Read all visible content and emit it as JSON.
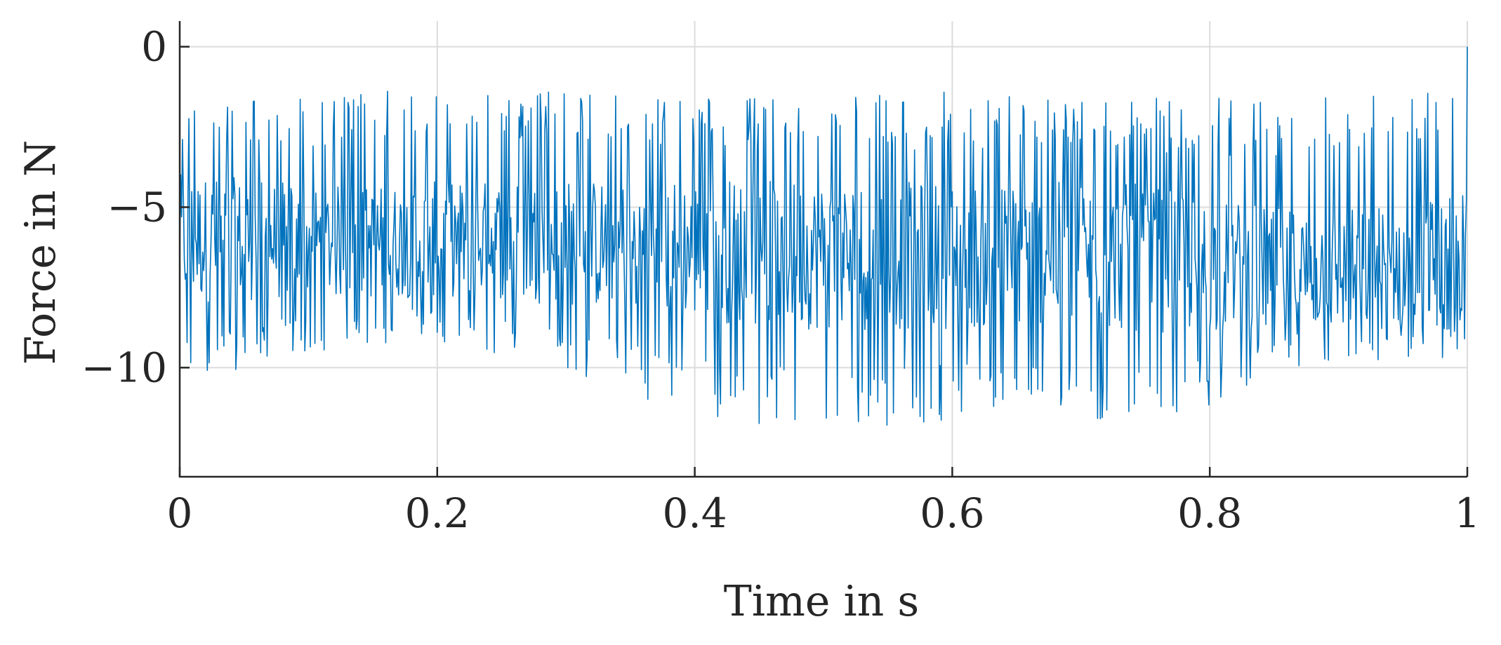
{
  "chart_data": {
    "type": "line",
    "title": "",
    "xlabel": "Time in s",
    "ylabel": "Force in N",
    "xlim": [
      0,
      1
    ],
    "ylim": [
      -13.4,
      0.8
    ],
    "x_ticks": [
      0,
      0.2,
      0.4,
      0.6,
      0.8,
      1
    ],
    "x_tick_labels": [
      "0",
      "0.2",
      "0.4",
      "0.6",
      "0.8",
      "1"
    ],
    "y_ticks": [
      0,
      -5,
      -10
    ],
    "y_tick_labels": [
      "0",
      "−5",
      "−10"
    ],
    "grid": true,
    "legend": "none",
    "line_color": "#0072BD",
    "envelope": {
      "x": [
        0,
        0.05,
        0.1,
        0.15,
        0.2,
        0.25,
        0.3,
        0.35,
        0.4,
        0.45,
        0.5,
        0.55,
        0.6,
        0.65,
        0.7,
        0.75,
        0.8,
        0.85,
        0.9,
        0.95,
        1.0
      ],
      "center": [
        -6.0,
        -6.0,
        -6.1,
        -6.1,
        -6.0,
        -6.0,
        -6.1,
        -6.2,
        -6.3,
        -6.4,
        -6.5,
        -6.5,
        -6.5,
        -6.5,
        -6.5,
        -6.6,
        -6.8,
        -7.0,
        -7.0,
        -6.8,
        -6.6
      ],
      "max": [
        -1.5,
        -1.5,
        -1.5,
        -1.4,
        -1.3,
        -1.3,
        -1.4,
        -1.5,
        -1.5,
        -1.6,
        -1.6,
        -1.5,
        -1.4,
        -1.4,
        -1.5,
        -1.6,
        -1.6,
        -1.5,
        -1.4,
        -1.2,
        -0.5
      ],
      "min": [
        -10.5,
        -10.0,
        -9.5,
        -9.3,
        -9.3,
        -9.6,
        -10.2,
        -10.8,
        -11.5,
        -11.8,
        -12.0,
        -11.9,
        -11.6,
        -11.5,
        -11.7,
        -11.9,
        -11.2,
        -10.3,
        -10.0,
        -10.1,
        -9.8
      ]
    },
    "samples": 1400
  }
}
